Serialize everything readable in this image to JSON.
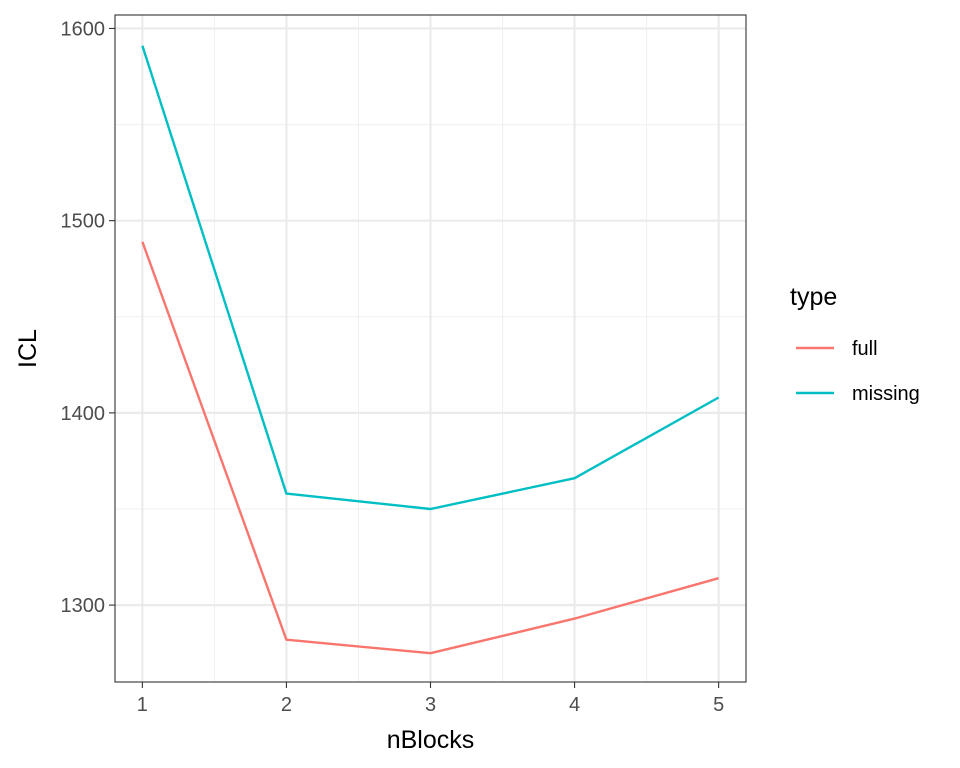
{
  "chart_data": {
    "type": "line",
    "xlabel": "nBlocks",
    "ylabel": "ICL",
    "x": [
      1,
      2,
      3,
      4,
      5
    ],
    "xlim": [
      0.81,
      5.19
    ],
    "ylim": [
      1260,
      1607
    ],
    "xticks": [
      1,
      2,
      3,
      4,
      5
    ],
    "yticks": [
      1300,
      1400,
      1500,
      1600
    ],
    "grid": true,
    "legend": {
      "title": "type",
      "position": "right"
    },
    "series": [
      {
        "name": "full",
        "color": "#F8766D",
        "values": [
          1489,
          1282,
          1275,
          1293,
          1314
        ]
      },
      {
        "name": "missing",
        "color": "#00BFC4",
        "values": [
          1591,
          1358,
          1350,
          1366,
          1408
        ]
      }
    ]
  }
}
